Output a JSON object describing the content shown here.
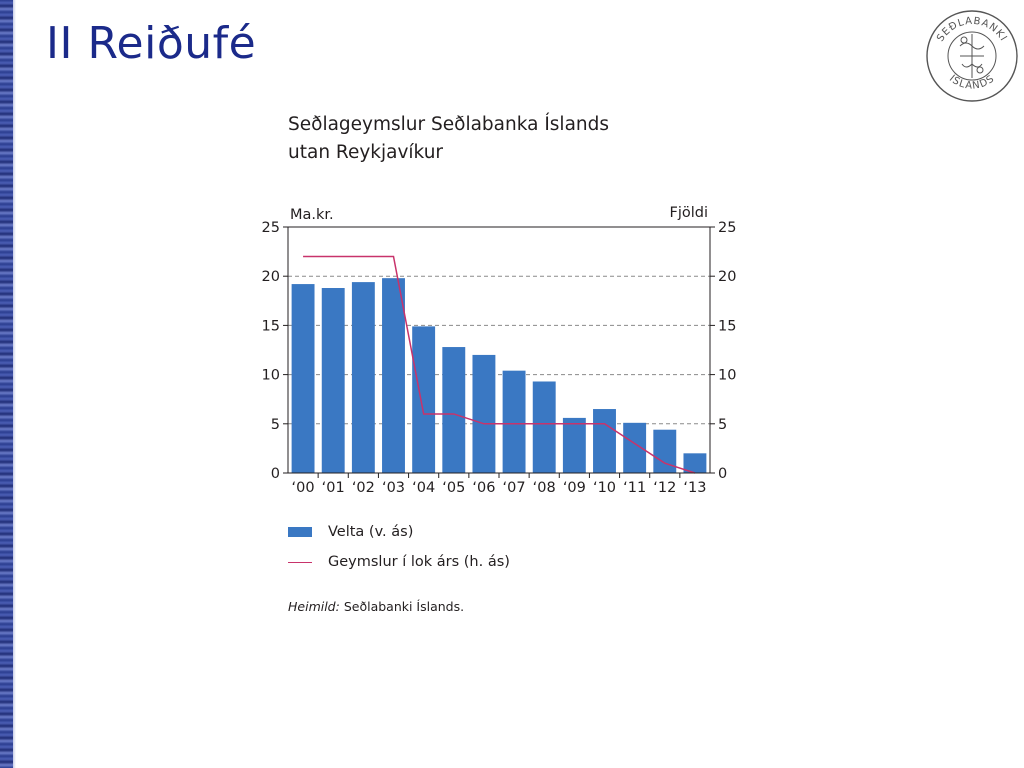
{
  "slide": {
    "title": "II Reiðufé"
  },
  "logo": {
    "text_top": "SEÐLABANKI",
    "text_bottom": "ÍSLANDS"
  },
  "chart_data": {
    "type": "bar",
    "title_line1": "Seðlageymslur Seðlabanka Íslands",
    "title_line2": "utan Reykjavíkur",
    "left_axis_label": "Ma.kr.",
    "right_axis_label": "Fjöldi",
    "categories": [
      "‘00",
      "‘01",
      "‘02",
      "‘03",
      "‘04",
      "‘05",
      "‘06",
      "‘07",
      "‘08",
      "‘09",
      "‘10",
      "‘11",
      "‘12",
      "‘13"
    ],
    "left_ticks": [
      "0",
      "5",
      "10",
      "15",
      "20",
      "25"
    ],
    "right_ticks": [
      "0",
      "5",
      "10",
      "15",
      "20",
      "25"
    ],
    "ylim": [
      0,
      25
    ],
    "grid": "dashed horizontal",
    "series": [
      {
        "name": "Velta (v. ás)",
        "type": "bar",
        "axis": "left",
        "color": "#3a78c3",
        "values": [
          19.2,
          18.8,
          19.4,
          19.8,
          14.9,
          12.8,
          12.0,
          10.4,
          9.3,
          5.6,
          6.5,
          5.1,
          4.4,
          2.0
        ]
      },
      {
        "name": "Geymslur í lok árs (h. ás)",
        "type": "line",
        "axis": "right",
        "color": "#c8336b",
        "values": [
          22,
          22,
          22,
          22,
          6,
          6,
          5,
          5,
          5,
          5,
          5,
          3,
          1,
          0
        ]
      }
    ]
  },
  "source": {
    "label": "Heimild:",
    "text": " Seðlabanki Íslands."
  }
}
